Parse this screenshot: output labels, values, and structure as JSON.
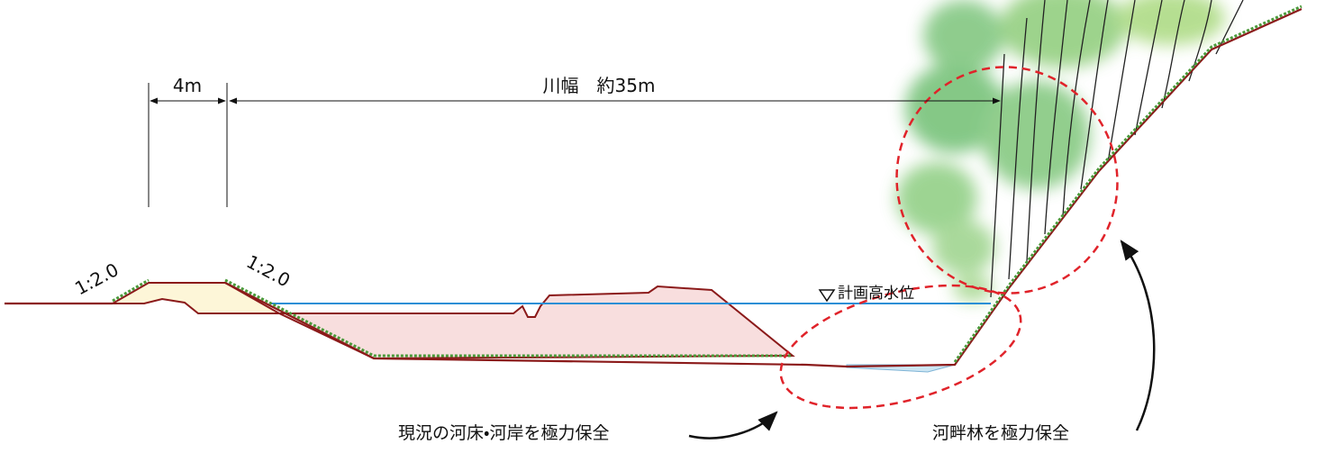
{
  "dimensions": {
    "bank_width": "4m",
    "river_width": "川幅　約35m"
  },
  "slopes": [
    "1:2.0",
    "1:2.0"
  ],
  "water_level": "計画高水位",
  "annotations": [
    "現況の河床・河岸を極力保全",
    "河畔林を極力保全"
  ]
}
